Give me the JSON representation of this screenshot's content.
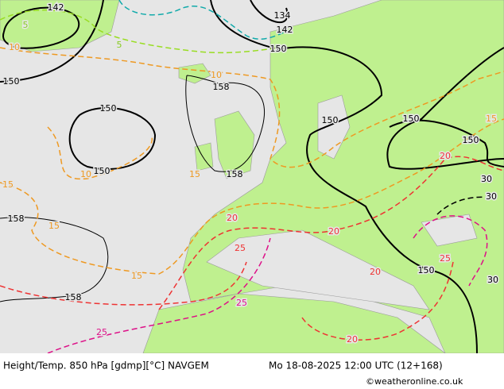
{
  "map": {
    "height_labels": [
      142,
      134,
      142,
      150,
      150,
      158,
      150,
      150,
      158,
      158,
      158,
      150,
      150,
      150,
      150
    ],
    "temp_labels": [
      {
        "text": 5,
        "kind": "cool"
      },
      {
        "text": 5,
        "kind": "cool"
      },
      {
        "text": 10,
        "kind": "warm"
      },
      {
        "text": 10,
        "kind": "warm"
      },
      {
        "text": 10,
        "kind": "warm"
      },
      {
        "text": 15,
        "kind": "warm"
      },
      {
        "text": 15,
        "kind": "warm"
      },
      {
        "text": 15,
        "kind": "warm"
      },
      {
        "text": 15,
        "kind": "warm"
      },
      {
        "text": 15,
        "kind": "warm"
      },
      {
        "text": 20,
        "kind": "hot"
      },
      {
        "text": 20,
        "kind": "hot"
      },
      {
        "text": 20,
        "kind": "hot"
      },
      {
        "text": 20,
        "kind": "hot"
      },
      {
        "text": 20,
        "kind": "hot"
      },
      {
        "text": 25,
        "kind": "hot"
      },
      {
        "text": 25,
        "kind": "hot"
      },
      {
        "text": 25,
        "kind": "pink"
      },
      {
        "text": 25,
        "kind": "pink"
      },
      {
        "text": 30,
        "kind": "black"
      },
      {
        "text": 30,
        "kind": "black"
      },
      {
        "text": 30,
        "kind": "black"
      }
    ]
  },
  "footer": {
    "title": "Height/Temp. 850 hPa [gdmp][°C] NAVGEM",
    "datetime": "Mo 18-08-2025 12:00 UTC (12+168)",
    "credit": "©weatheronline.co.uk"
  }
}
